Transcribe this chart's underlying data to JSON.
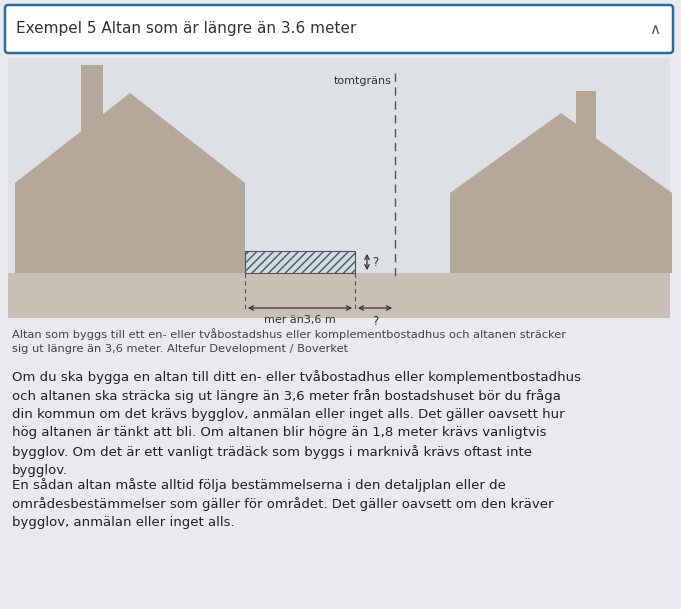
{
  "title": "Exempel 5 Altan som är längre än 3.6 meter",
  "title_fontsize": 11,
  "background_color": "#e8eaed",
  "header_bg": "#ffffff",
  "header_border": "#2b6ca3",
  "house_color": "#b5a898",
  "ground_color": "#c9bfb5",
  "text_color": "#333333",
  "caption_text": "Altan som byggs till ett en- eller tvåbostadshus eller komplementbostadhus och altanen sträcker\nsig ut längre än 3,6 meter. Altefur Development / Boverket",
  "para1_lines": [
    "Om du ska bygga en altan till ditt en- eller tvåbostadhus eller komplementbostadhus",
    "och altanen ska sträcka sig ut längre än 3,6 meter från bostadshuset bör du fråga",
    "din kommun om det krävs bygglov, anmälan eller inget alls. Det gäller oavsett hur",
    "hög altanen är tänkt att bli. Om altanen blir högre än 1,8 meter krävs vanligtvis",
    "bygglov. Om det är ett vanligt trädäck som byggs i marknivå krävs oftast inte",
    "bygglov."
  ],
  "para2_lines": [
    "En sådan altan måste alltid följa bestämmelserna i den detaljplan eller de",
    "områdesbestämmelser som gäller för området. Det gäller oavsett om den kräver",
    "bygglov, anmälan eller inget alls."
  ],
  "tomtgrans_label": "tomtgräns",
  "mer_an_label": "mer än3,6 m",
  "question_mark": "?",
  "caret": "∧"
}
